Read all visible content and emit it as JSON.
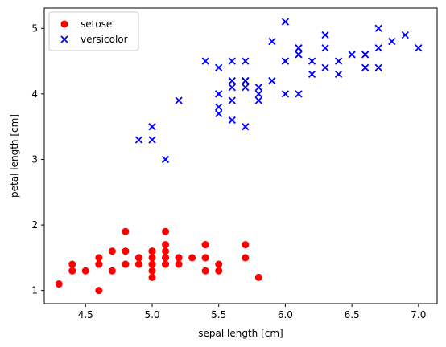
{
  "chart_data": {
    "type": "scatter",
    "xlabel": "sepal length [cm]",
    "ylabel": "petal length [cm]",
    "xlim": [
      4.19,
      7.14
    ],
    "ylim": [
      0.8,
      5.31
    ],
    "x_ticks": [
      4.5,
      5.0,
      5.5,
      6.0,
      6.5,
      7.0
    ],
    "x_tick_labels": [
      "4.5",
      "5.0",
      "5.5",
      "6.0",
      "6.5",
      "7.0"
    ],
    "y_ticks": [
      1,
      2,
      3,
      4,
      5
    ],
    "y_tick_labels": [
      "1",
      "2",
      "3",
      "4",
      "5"
    ],
    "grid": false,
    "legend_position": "top-left",
    "series": [
      {
        "name": "setose",
        "marker": "circle",
        "color": "#ff0000",
        "points": [
          [
            5.1,
            1.4
          ],
          [
            4.9,
            1.4
          ],
          [
            4.7,
            1.3
          ],
          [
            4.6,
            1.5
          ],
          [
            5.0,
            1.4
          ],
          [
            5.4,
            1.7
          ],
          [
            4.6,
            1.4
          ],
          [
            5.0,
            1.5
          ],
          [
            4.4,
            1.4
          ],
          [
            4.9,
            1.5
          ],
          [
            5.4,
            1.5
          ],
          [
            4.8,
            1.6
          ],
          [
            4.8,
            1.4
          ],
          [
            4.3,
            1.1
          ],
          [
            5.8,
            1.2
          ],
          [
            5.7,
            1.5
          ],
          [
            5.4,
            1.3
          ],
          [
            5.1,
            1.4
          ],
          [
            5.7,
            1.7
          ],
          [
            5.1,
            1.5
          ],
          [
            5.4,
            1.7
          ],
          [
            5.1,
            1.5
          ],
          [
            4.6,
            1.0
          ],
          [
            5.1,
            1.7
          ],
          [
            4.8,
            1.9
          ],
          [
            5.0,
            1.6
          ],
          [
            5.0,
            1.6
          ],
          [
            5.2,
            1.5
          ],
          [
            5.2,
            1.4
          ],
          [
            4.7,
            1.6
          ],
          [
            4.8,
            1.6
          ],
          [
            5.4,
            1.5
          ],
          [
            5.2,
            1.5
          ],
          [
            5.5,
            1.4
          ],
          [
            4.9,
            1.5
          ],
          [
            5.0,
            1.2
          ],
          [
            5.5,
            1.3
          ],
          [
            4.9,
            1.4
          ],
          [
            4.4,
            1.3
          ],
          [
            5.1,
            1.5
          ],
          [
            5.0,
            1.3
          ],
          [
            4.5,
            1.3
          ],
          [
            4.4,
            1.3
          ],
          [
            5.0,
            1.6
          ],
          [
            5.1,
            1.9
          ],
          [
            4.8,
            1.4
          ],
          [
            5.1,
            1.6
          ],
          [
            4.6,
            1.4
          ],
          [
            5.3,
            1.5
          ],
          [
            5.0,
            1.4
          ]
        ]
      },
      {
        "name": "versicolor",
        "marker": "x",
        "color": "#0000ff",
        "points": [
          [
            7.0,
            4.7
          ],
          [
            6.4,
            4.5
          ],
          [
            6.9,
            4.9
          ],
          [
            5.5,
            4.0
          ],
          [
            6.5,
            4.6
          ],
          [
            5.7,
            4.5
          ],
          [
            6.3,
            4.7
          ],
          [
            4.9,
            3.3
          ],
          [
            6.6,
            4.6
          ],
          [
            5.2,
            3.9
          ],
          [
            5.0,
            3.5
          ],
          [
            5.9,
            4.2
          ],
          [
            6.0,
            4.0
          ],
          [
            6.1,
            4.7
          ],
          [
            5.6,
            3.6
          ],
          [
            6.7,
            4.4
          ],
          [
            5.6,
            4.5
          ],
          [
            5.8,
            4.1
          ],
          [
            6.2,
            4.5
          ],
          [
            5.6,
            3.9
          ],
          [
            5.9,
            4.8
          ],
          [
            6.1,
            4.0
          ],
          [
            6.3,
            4.9
          ],
          [
            6.1,
            4.7
          ],
          [
            6.4,
            4.3
          ],
          [
            6.6,
            4.4
          ],
          [
            6.8,
            4.8
          ],
          [
            6.7,
            5.0
          ],
          [
            6.0,
            4.5
          ],
          [
            5.7,
            3.5
          ],
          [
            5.5,
            3.8
          ],
          [
            5.5,
            3.7
          ],
          [
            5.8,
            3.9
          ],
          [
            6.0,
            5.1
          ],
          [
            5.4,
            4.5
          ],
          [
            6.0,
            4.5
          ],
          [
            6.7,
            4.7
          ],
          [
            6.3,
            4.4
          ],
          [
            5.6,
            4.1
          ],
          [
            5.5,
            4.0
          ],
          [
            5.5,
            4.4
          ],
          [
            6.1,
            4.6
          ],
          [
            5.8,
            4.0
          ],
          [
            5.0,
            3.3
          ],
          [
            5.6,
            4.2
          ],
          [
            5.7,
            4.2
          ],
          [
            5.7,
            4.2
          ],
          [
            6.2,
            4.3
          ],
          [
            5.1,
            3.0
          ],
          [
            5.7,
            4.1
          ]
        ]
      }
    ]
  }
}
